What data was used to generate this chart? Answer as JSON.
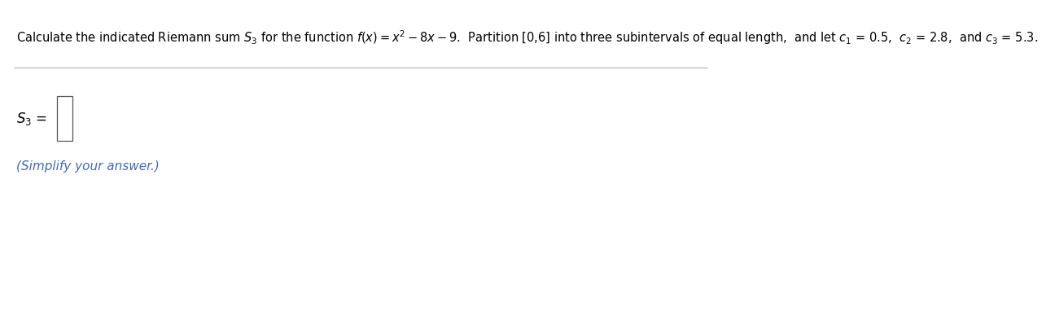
{
  "top_text": "Calculate the indicated Riemann sum $S_3$ for the function $f(x) = x^2 - 8x - 9$.  Partition [0,6] into three subintervals of equal length,  and let $c_1$ = 0.5,  $c_2$ = 2.8,  and $c_3$ = 5.3.",
  "s3_label": "$S_3$",
  "equals": " =",
  "simplify_text": "(Simplify your answer.)",
  "text_color": "#000000",
  "blue_color": "#4169b8",
  "bg_color": "#ffffff",
  "line_color": "#aaaaaa",
  "box_color": "#555555",
  "font_size_top": 10.5,
  "font_size_s3": 12.0,
  "font_size_simplify": 11.0
}
